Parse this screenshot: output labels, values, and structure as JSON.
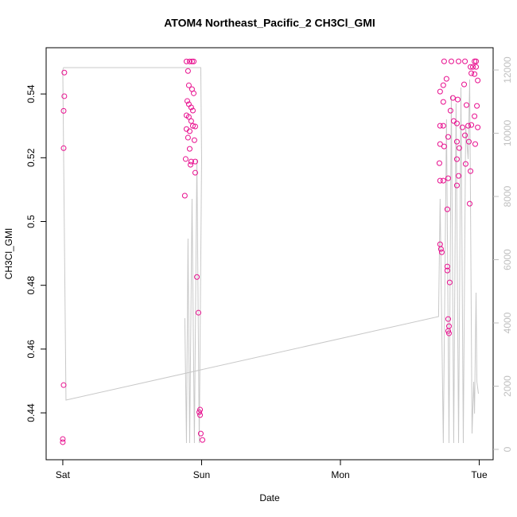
{
  "chart_data": {
    "type": "scatter",
    "title": "ATOM4 Northeast_Pacific_2 CH3Cl_GMI",
    "x_label": "Date",
    "y_label": "CH3Cl_GMI",
    "xlim": [
      -0.12,
      3.1
    ],
    "xticks": [
      {
        "value": 0,
        "label": "Sat"
      },
      {
        "value": 1,
        "label": "Sun"
      },
      {
        "value": 2,
        "label": "Mon"
      },
      {
        "value": 3,
        "label": "Tue"
      }
    ],
    "ylim": [
      0.4253,
      0.5545
    ],
    "yticks": [
      0.44,
      0.46,
      0.48,
      0.5,
      0.52,
      0.54
    ],
    "y2lim": [
      -327,
      12704
    ],
    "y2ticks": [
      0,
      2000,
      4000,
      6000,
      8000,
      10000,
      12000
    ],
    "y2_color": "#bfbfbf",
    "series": [
      {
        "type": "scatter",
        "color": "#e8108f",
        "x": [
          0.011,
          0.011,
          0.006,
          0.006,
          0.006,
          0,
          0,
          0.891,
          0.914,
          0.931,
          0.943,
          0.902,
          0.908,
          0.931,
          0.943,
          0.897,
          0.908,
          0.925,
          0.937,
          0.891,
          0.908,
          0.925,
          0.937,
          0.954,
          0.891,
          0.914,
          0.902,
          0.948,
          0.914,
          0.885,
          0.925,
          0.954,
          0.92,
          0.954,
          0.879,
          0.966,
          0.977,
          0.989,
          0.983,
          0.989,
          0.994,
          1.006,
          2.747,
          2.799,
          2.851,
          2.897,
          2.966,
          2.977,
          2.937,
          2.954,
          2.977,
          2.718,
          2.741,
          2.764,
          2.891,
          2.943,
          2.966,
          2.989,
          2.81,
          2.845,
          2.741,
          2.793,
          2.908,
          2.983,
          2.966,
          2.718,
          2.741,
          2.816,
          2.839,
          2.879,
          2.92,
          2.943,
          2.989,
          2.776,
          2.839,
          2.856,
          2.897,
          2.718,
          2.747,
          2.925,
          2.971,
          2.713,
          2.839,
          2.902,
          2.937,
          2.776,
          2.851,
          2.718,
          2.741,
          2.839,
          2.77,
          2.931,
          2.718,
          2.724,
          2.73,
          2.77,
          2.77,
          2.787,
          2.776,
          2.782,
          2.776,
          2.782
        ],
        "values": [
          0.5467,
          0.5393,
          0.5347,
          0.523,
          0.4487,
          0.4318,
          0.4308,
          0.5502,
          0.5502,
          0.5502,
          0.5502,
          0.5472,
          0.5427,
          0.5415,
          0.5402,
          0.5378,
          0.5368,
          0.5358,
          0.5348,
          0.5333,
          0.5328,
          0.5315,
          0.53,
          0.5298,
          0.529,
          0.5283,
          0.5263,
          0.5255,
          0.5228,
          0.5196,
          0.5188,
          0.5188,
          0.5178,
          0.5153,
          0.5081,
          0.4826,
          0.4714,
          0.441,
          0.4402,
          0.4393,
          0.4335,
          0.4315,
          0.55022,
          0.55022,
          0.55022,
          0.55022,
          0.55022,
          0.55022,
          0.54848,
          0.54848,
          0.54848,
          0.54075,
          0.54274,
          0.54474,
          0.54299,
          0.54648,
          0.54623,
          0.54424,
          0.53875,
          0.53825,
          0.53751,
          0.53476,
          0.53651,
          0.53626,
          0.53302,
          0.53002,
          0.53002,
          0.53152,
          0.53077,
          0.52953,
          0.53002,
          0.53027,
          0.52953,
          0.52653,
          0.52504,
          0.52304,
          0.52703,
          0.52429,
          0.52354,
          0.52504,
          0.52429,
          0.5183,
          0.51955,
          0.51805,
          0.51581,
          0.51357,
          0.51431,
          0.51282,
          0.51282,
          0.51132,
          0.50384,
          0.50559,
          0.49287,
          0.49137,
          0.49037,
          0.48589,
          0.48464,
          0.4809,
          0.46943,
          0.46718,
          0.46569,
          0.46494
        ]
      },
      {
        "type": "line",
        "axis": "y2",
        "color": "#c8c8c8",
        "x": [
          0.879,
          0.891,
          0.902,
          0.914,
          0.931,
          0.948,
          0.966,
          0.983,
          1.0,
          0.994,
          0.006,
          0,
          0.023,
          2.707,
          2.718,
          2.741,
          2.764,
          2.782,
          2.799,
          2.816,
          2.833,
          2.851,
          2.868,
          2.885,
          2.902,
          2.92,
          2.931,
          2.948,
          2.96,
          2.966,
          2.977,
          2.983,
          2.994
        ],
        "values": [
          4151,
          201,
          6667,
          201,
          7924,
          201,
          9182,
          201,
          9182,
          12075,
          12075,
          12000,
          1560,
          4201,
          7924,
          201,
          10440,
          201,
          11195,
          201,
          10943,
          201,
          11446,
          201,
          10189,
          9182,
          11698,
          503,
          2138,
          1132,
          4956,
          2138,
          1761
        ]
      }
    ]
  }
}
